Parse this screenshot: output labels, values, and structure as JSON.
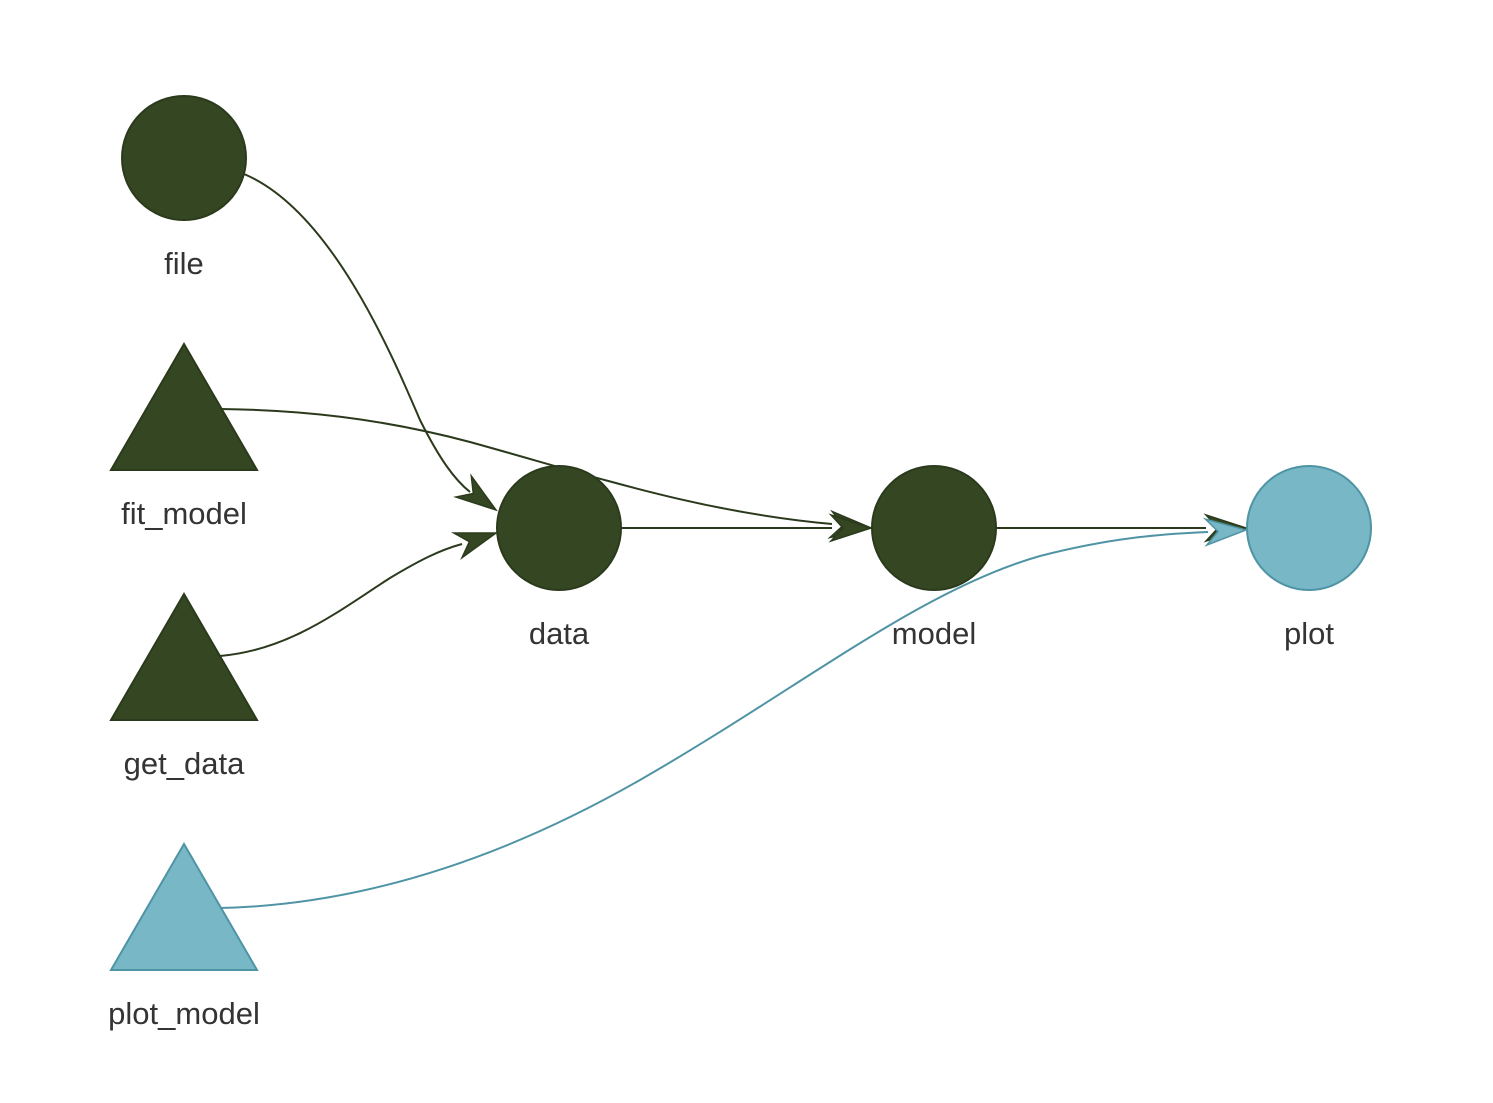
{
  "colors": {
    "up_to_date": "#344722",
    "up_to_date_stroke": "#2b3a1c",
    "outdated": "#78b7c5",
    "outdated_stroke": "#4f94a4",
    "edge_dark": "#2b3a1c",
    "edge_light": "#4f94a4",
    "label": "#343434"
  },
  "nodes": [
    {
      "id": "file",
      "label": "file",
      "shape": "circle",
      "status": "up_to_date"
    },
    {
      "id": "fit_model",
      "label": "fit_model",
      "shape": "triangle",
      "status": "up_to_date"
    },
    {
      "id": "get_data",
      "label": "get_data",
      "shape": "triangle",
      "status": "up_to_date"
    },
    {
      "id": "plot_model",
      "label": "plot_model",
      "shape": "triangle",
      "status": "outdated"
    },
    {
      "id": "data",
      "label": "data",
      "shape": "circle",
      "status": "up_to_date"
    },
    {
      "id": "model",
      "label": "model",
      "shape": "circle",
      "status": "up_to_date"
    },
    {
      "id": "plot",
      "label": "plot",
      "shape": "circle",
      "status": "outdated"
    }
  ],
  "edges": [
    {
      "from": "file",
      "to": "data"
    },
    {
      "from": "get_data",
      "to": "data"
    },
    {
      "from": "fit_model",
      "to": "model"
    },
    {
      "from": "data",
      "to": "model"
    },
    {
      "from": "model",
      "to": "plot"
    },
    {
      "from": "plot_model",
      "to": "plot"
    }
  ]
}
